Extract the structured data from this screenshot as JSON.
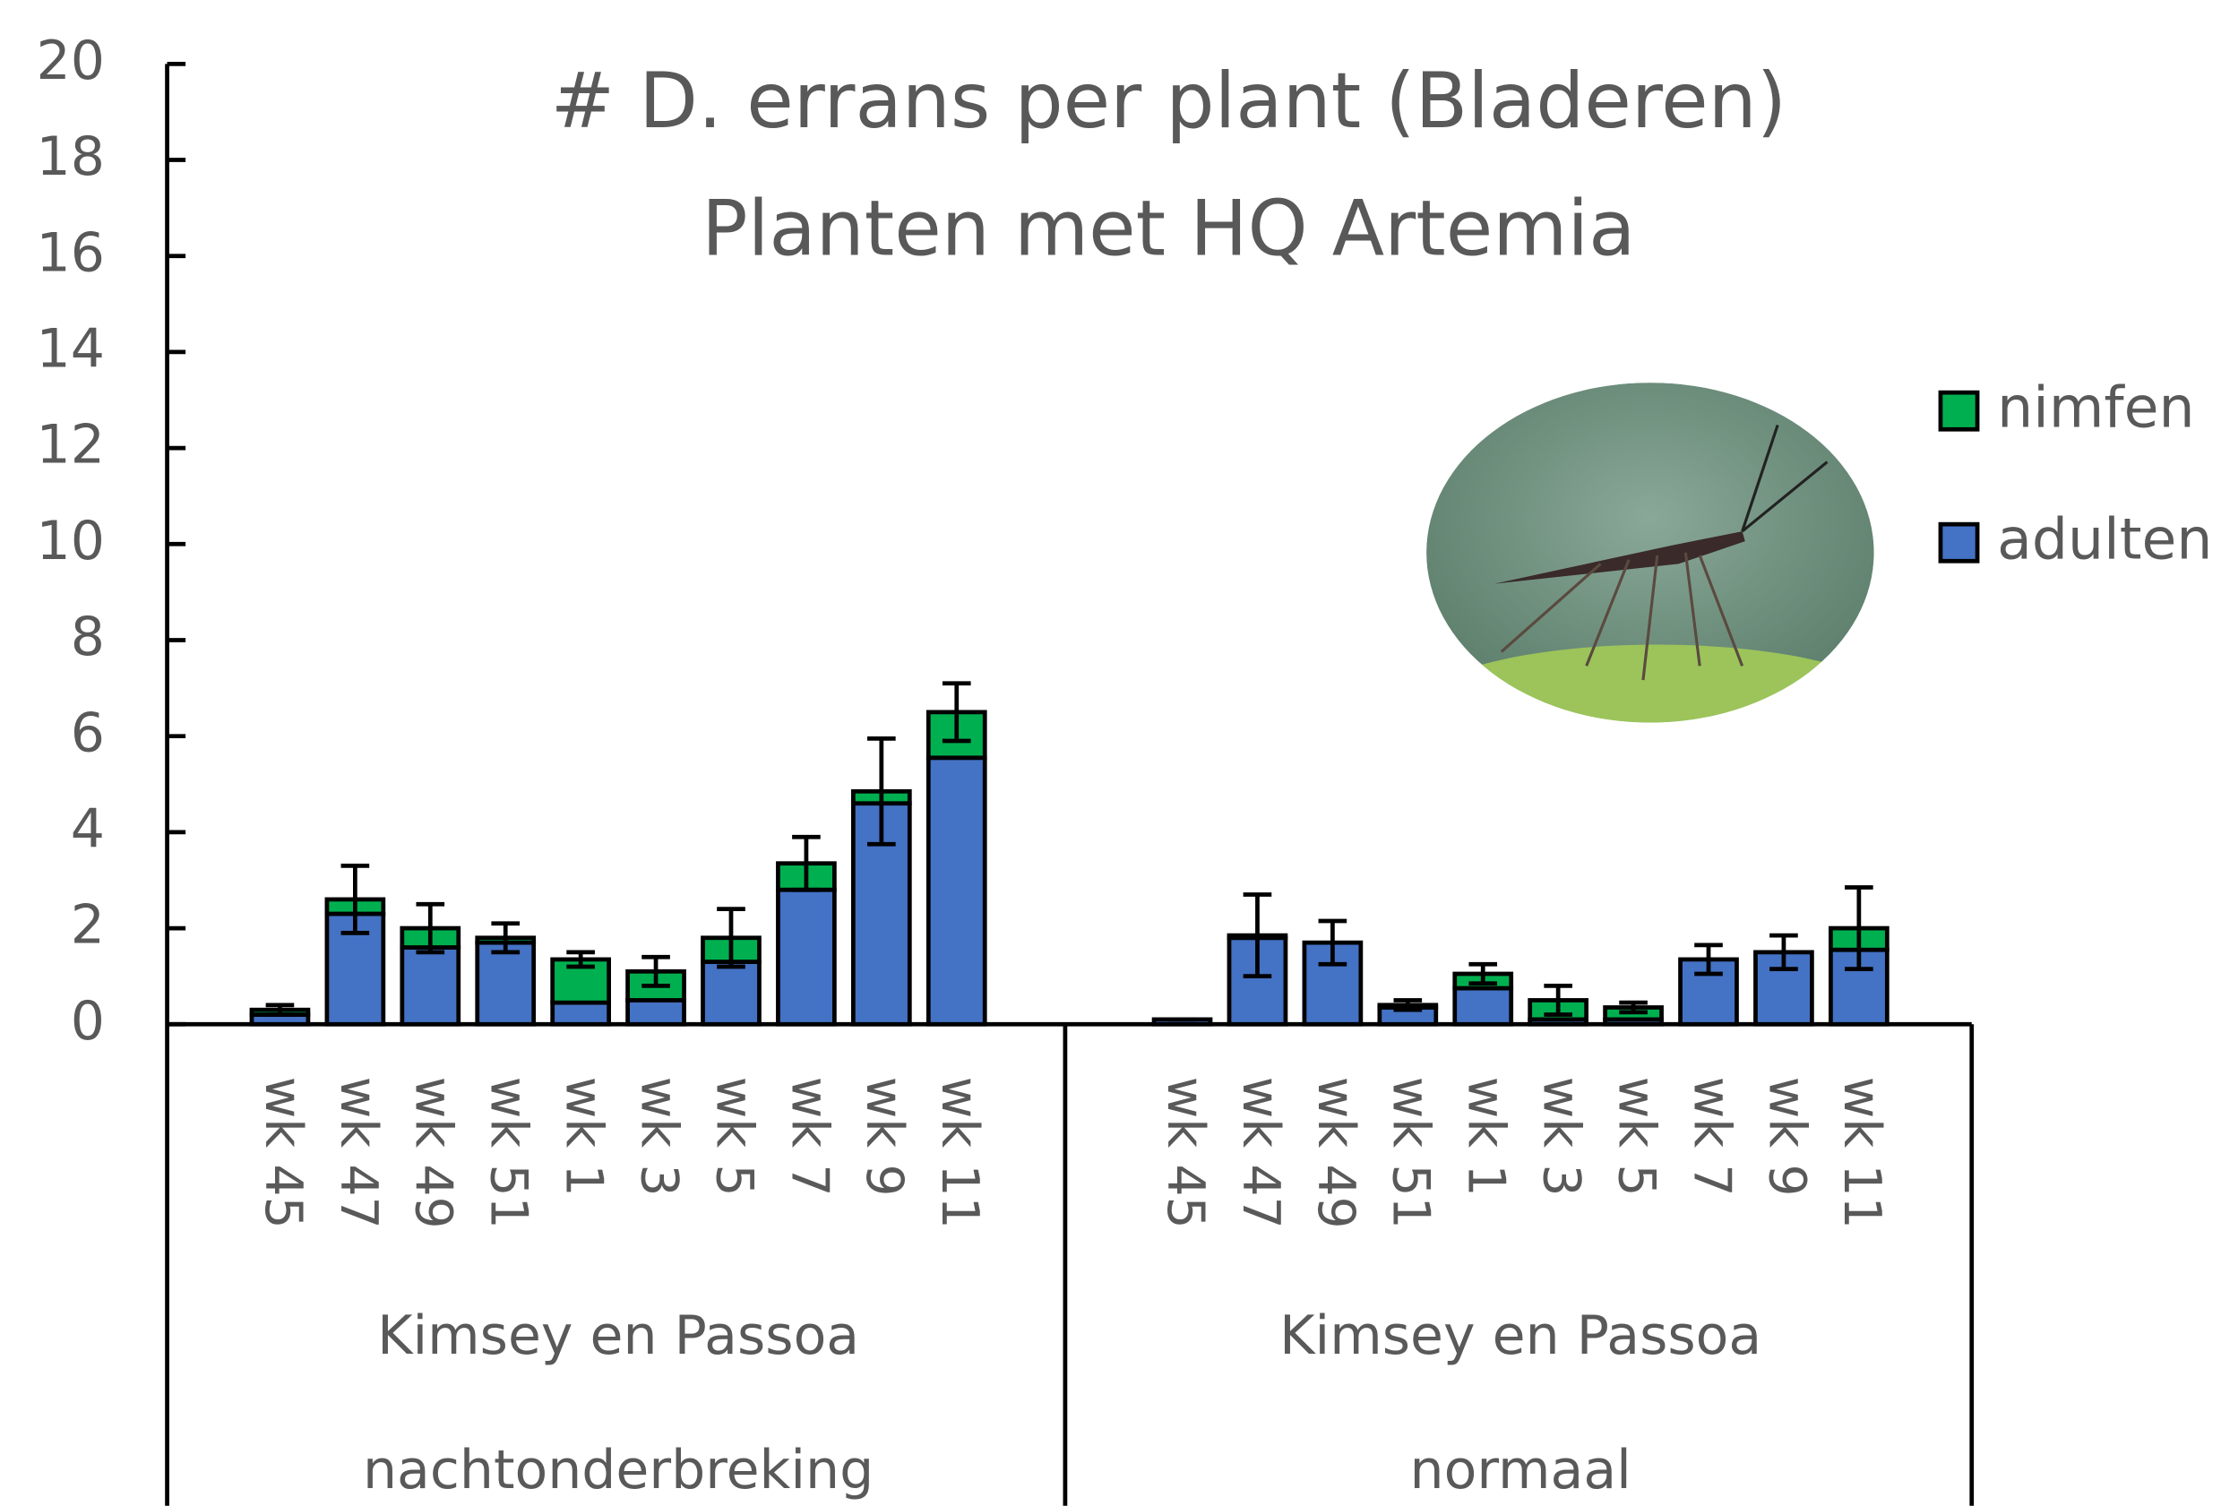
{
  "chart_data": {
    "type": "stacked-bar",
    "title": "# D. errans per plant (Bladeren)",
    "subtitle": "Planten met HQ Artemia",
    "categories": [
      "wk 45",
      "wk 47",
      "wk 49",
      "wk 51",
      "wk 1",
      "wk 3",
      "wk 5",
      "wk 7",
      "wk 9",
      "wk 11",
      "wk 45",
      "wk 47",
      "wk 49",
      "wk 51",
      "wk 1",
      "wk 3",
      "wk 5",
      "wk 7",
      "wk 9",
      "wk 11"
    ],
    "group_labels": [
      [
        "Kimsey en Passoa",
        "nachtonderbreking"
      ],
      [
        "Kimsey en Passoa",
        "normaal"
      ]
    ],
    "series": [
      {
        "name": "nimfen",
        "color": "#00b050",
        "values": [
          0.1,
          0.3,
          0.4,
          0.1,
          0.9,
          0.6,
          0.5,
          0.55,
          0.25,
          0.95,
          0,
          0.05,
          0,
          0.05,
          0.3,
          0.4,
          0.25,
          0,
          0,
          0.45
        ],
        "errors": [
          0.1,
          0.7,
          0.5,
          0.3,
          0.15,
          0.3,
          0.6,
          0.55,
          1.1,
          0.6,
          0,
          0.85,
          0.45,
          0.1,
          0.2,
          0.3,
          0.1,
          0.3,
          0.35,
          0.85
        ]
      },
      {
        "name": "adulten",
        "color": "#4472c4",
        "values": [
          0.2,
          2.3,
          1.6,
          1.7,
          0.45,
          0.5,
          1.3,
          2.8,
          4.6,
          5.55,
          0.1,
          1.8,
          1.7,
          0.35,
          0.75,
          0.1,
          0.1,
          1.35,
          1.5,
          1.55
        ]
      }
    ],
    "ylim": [
      0,
      20
    ],
    "yticks": [
      0,
      2,
      4,
      6,
      8,
      10,
      12,
      14,
      16,
      18,
      20
    ]
  }
}
